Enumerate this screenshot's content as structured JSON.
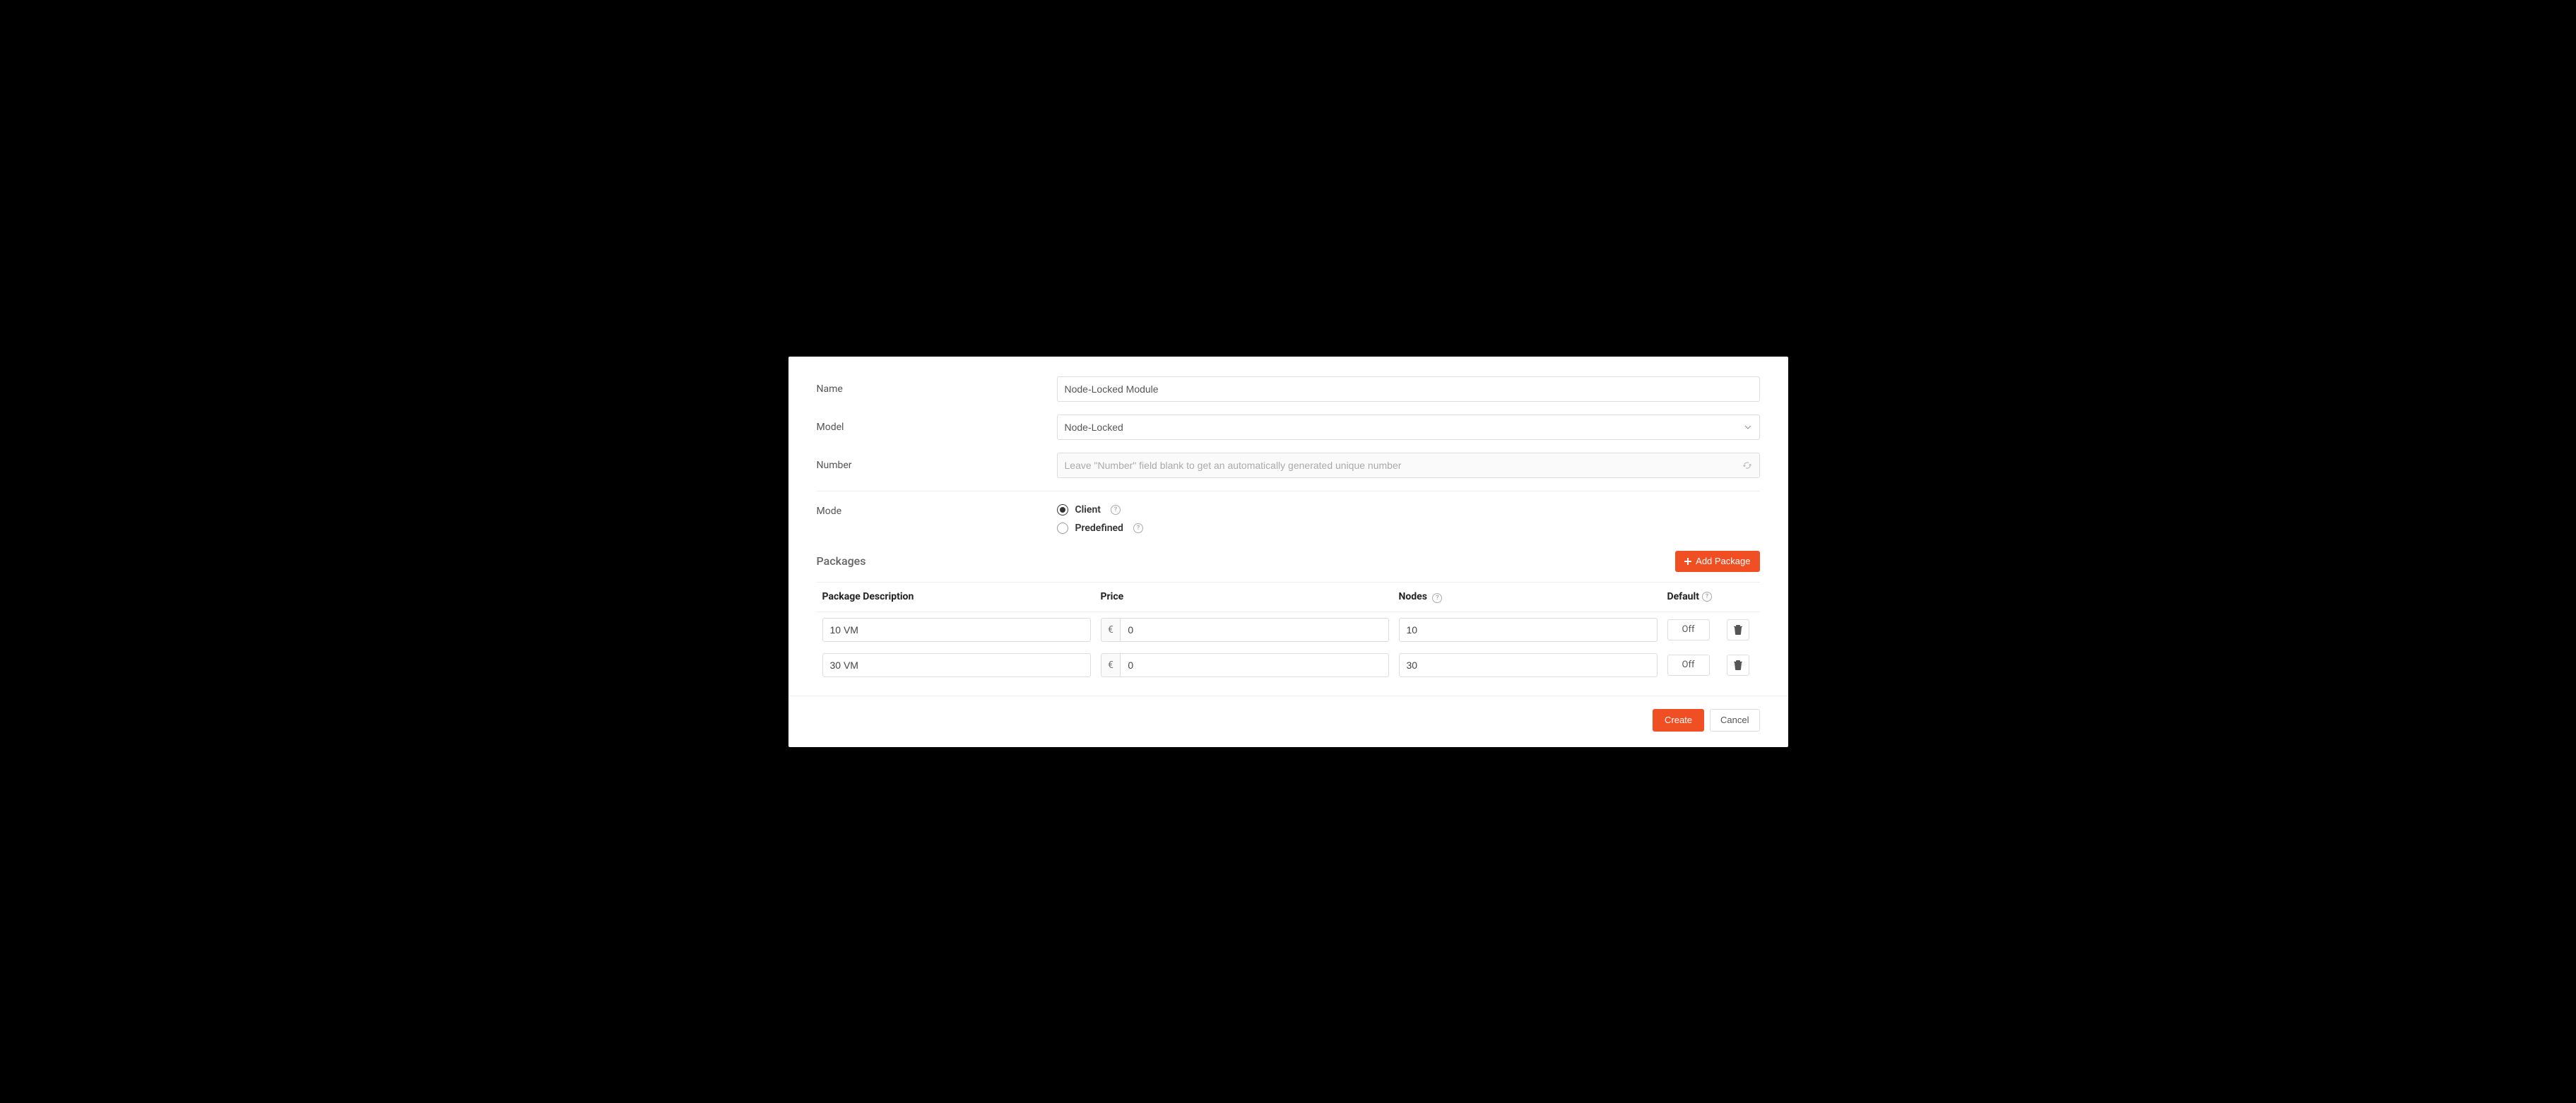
{
  "colors": {
    "accent": "#f04e23",
    "border": "#dddddd",
    "text": "#333333",
    "muted": "#aaaaaa",
    "panel_bg": "#ffffff",
    "page_bg": "#000000"
  },
  "form": {
    "name": {
      "label": "Name",
      "value": "Node-Locked Module"
    },
    "model": {
      "label": "Model",
      "value": "Node-Locked"
    },
    "number": {
      "label": "Number",
      "value": "",
      "placeholder": "Leave \"Number\" field blank to get an automatically generated unique number"
    },
    "mode": {
      "label": "Mode",
      "options": [
        {
          "label": "Client",
          "checked": true
        },
        {
          "label": "Predefined",
          "checked": false
        }
      ]
    }
  },
  "packages": {
    "title": "Packages",
    "add_label": "Add Package",
    "columns": {
      "description": "Package Description",
      "price": "Price",
      "nodes": "Nodes",
      "default": "Default"
    },
    "currency_symbol": "€",
    "toggle_off_label": "Off",
    "rows": [
      {
        "description": "10 VM",
        "price": "0",
        "nodes": "10",
        "default": "Off"
      },
      {
        "description": "30 VM",
        "price": "0",
        "nodes": "30",
        "default": "Off"
      }
    ]
  },
  "footer": {
    "create": "Create",
    "cancel": "Cancel"
  }
}
